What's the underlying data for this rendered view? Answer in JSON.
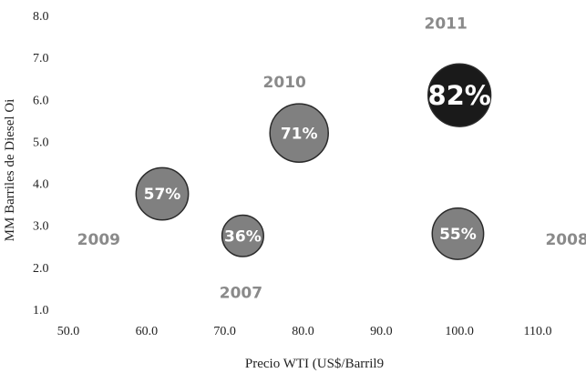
{
  "chart_data": {
    "type": "scatter",
    "title": "",
    "xlabel": "Precio WTI (US$/Barril9",
    "ylabel": "MM Barriles de Diesel Oi",
    "xlim": [
      50,
      110
    ],
    "ylim": [
      1,
      8
    ],
    "x_ticks": [
      "50.0",
      "60.0",
      "70.0",
      "80.0",
      "90.0",
      "100.0",
      "110.0"
    ],
    "y_ticks": [
      "1.0",
      "2.0",
      "3.0",
      "4.0",
      "5.0",
      "6.0",
      "7.0",
      "8.0"
    ],
    "grid": false,
    "points": [
      {
        "year": "2007",
        "x": 72.3,
        "y": 2.75,
        "label": "36%",
        "size": 36,
        "color": "#808080"
      },
      {
        "year": "2008",
        "x": 99.8,
        "y": 2.8,
        "label": "55%",
        "size": 55,
        "color": "#808080"
      },
      {
        "year": "2009",
        "x": 62.0,
        "y": 3.75,
        "label": "57%",
        "size": 57,
        "color": "#808080"
      },
      {
        "year": "2010",
        "x": 79.5,
        "y": 5.2,
        "label": "71%",
        "size": 71,
        "color": "#808080"
      },
      {
        "year": "2011",
        "x": 100.0,
        "y": 6.1,
        "label": "82%",
        "size": 82,
        "color": "#1a1a1a"
      }
    ]
  }
}
